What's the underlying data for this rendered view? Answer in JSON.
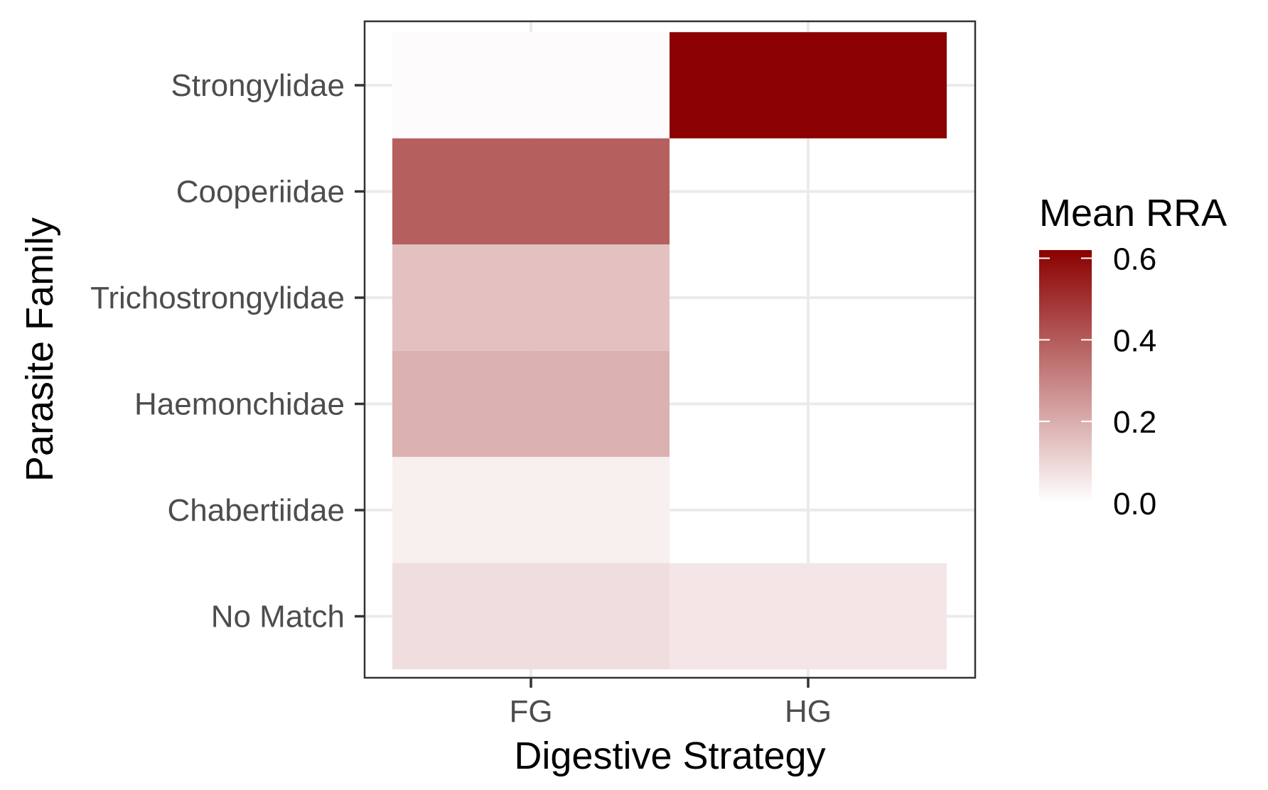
{
  "chart_data": {
    "type": "heatmap",
    "title": "",
    "xlabel": "Digestive Strategy",
    "ylabel": "Parasite Family",
    "x_categories": [
      "FG",
      "HG"
    ],
    "y_categories": [
      "Strongylidae",
      "Cooperiidae",
      "Trichostrongylidae",
      "Haemonchidae",
      "Chabertiidae",
      "No Match"
    ],
    "cells": [
      {
        "x": "FG",
        "y": "Strongylidae",
        "value": 0.01
      },
      {
        "x": "HG",
        "y": "Strongylidae",
        "value": 0.62
      },
      {
        "x": "FG",
        "y": "Cooperiidae",
        "value": 0.39
      },
      {
        "x": "FG",
        "y": "Trichostrongylidae",
        "value": 0.15
      },
      {
        "x": "FG",
        "y": "Haemonchidae",
        "value": 0.19
      },
      {
        "x": "FG",
        "y": "Chabertiidae",
        "value": 0.04
      },
      {
        "x": "FG",
        "y": "No Match",
        "value": 0.08
      },
      {
        "x": "HG",
        "y": "No Match",
        "value": 0.06
      }
    ],
    "legend": {
      "title": "Mean RRA",
      "position": "right",
      "ticks": [
        0.0,
        0.2,
        0.4,
        0.6
      ],
      "tick_labels": [
        "0.0",
        "0.2",
        "0.4",
        "0.6"
      ],
      "range": [
        0,
        0.62
      ]
    },
    "colors": {
      "low": "#ffffff",
      "high": "#8b0000",
      "grid": "#ebebeb",
      "panel_border": "#333333"
    },
    "grid": true
  }
}
